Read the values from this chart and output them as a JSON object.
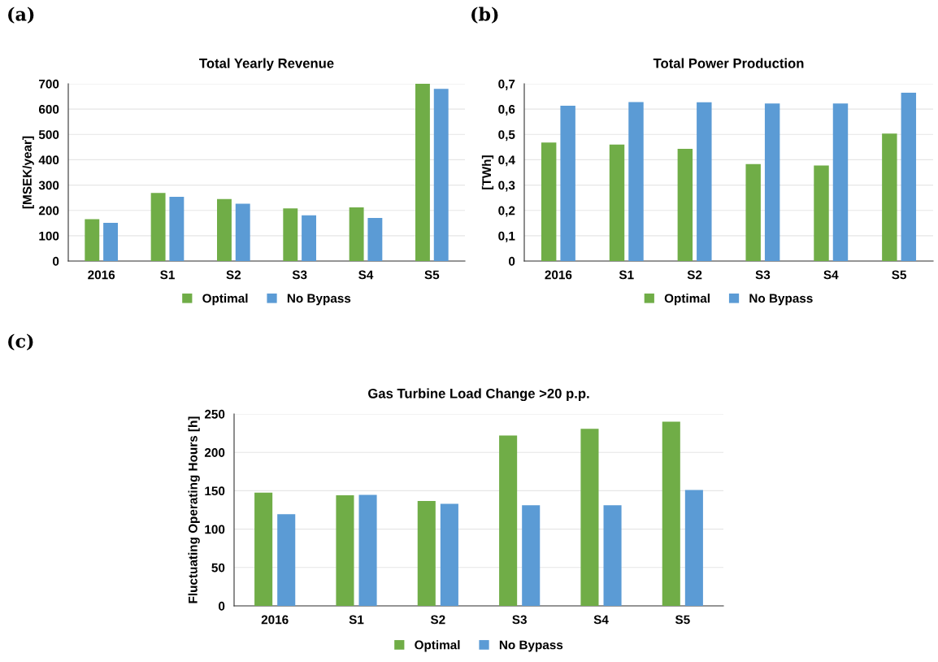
{
  "chart_data": [
    {
      "type": "bar",
      "title": "Total Yearly Revenue",
      "ylabel": "[MSEK/year]",
      "annotations": [
        "(a)"
      ],
      "categories": [
        "2016",
        "S1",
        "S2",
        "S3",
        "S4",
        "S5"
      ],
      "series": [
        {
          "name": "Optimal",
          "color": "#70ad47",
          "values": [
            165,
            269,
            245,
            208,
            212,
            700
          ]
        },
        {
          "name": "No Bypass",
          "color": "#5b9bd5",
          "values": [
            151,
            254,
            226,
            181,
            170,
            680
          ]
        }
      ],
      "ylim": [
        0,
        700
      ],
      "yticks": [
        0,
        100,
        200,
        300,
        400,
        500,
        600,
        700
      ],
      "grid": "y",
      "legend": "bottom"
    },
    {
      "type": "bar",
      "title": "Total Power Production",
      "ylabel": "[TWh]",
      "annotations": [
        "(b)"
      ],
      "categories": [
        "2016",
        "S1",
        "S2",
        "S3",
        "S4",
        "S5"
      ],
      "series": [
        {
          "name": "Optimal",
          "color": "#70ad47",
          "values": [
            0.468,
            0.46,
            0.443,
            0.383,
            0.377,
            0.503
          ]
        },
        {
          "name": "No Bypass",
          "color": "#5b9bd5",
          "values": [
            0.613,
            0.628,
            0.627,
            0.622,
            0.622,
            0.665
          ]
        }
      ],
      "ylim": [
        0,
        0.7
      ],
      "yticks": [
        0,
        {
          "value": 0.1,
          "label": "0,1"
        },
        {
          "value": 0.2,
          "label": "0,2"
        },
        {
          "value": 0.3,
          "label": "0,3"
        },
        {
          "value": 0.4,
          "label": "0,4"
        },
        {
          "value": 0.5,
          "label": "0,5"
        },
        {
          "value": 0.6,
          "label": "0,6"
        },
        {
          "value": 0.7,
          "label": "0,7"
        }
      ],
      "grid": "y",
      "legend": "bottom"
    },
    {
      "type": "bar",
      "title": "Gas Turbine Load Change >20 p.p.",
      "ylabel": "Fluctuating Operating Hours [h]",
      "annotations": [
        "(c)"
      ],
      "categories": [
        "2016",
        "S1",
        "S2",
        "S3",
        "S4",
        "S5"
      ],
      "series": [
        {
          "name": "Optimal",
          "color": "#70ad47",
          "values": [
            147.5,
            144,
            136.6,
            222,
            230.7,
            240
          ]
        },
        {
          "name": "No Bypass",
          "color": "#5b9bd5",
          "values": [
            119.5,
            144.5,
            133,
            131,
            131,
            151
          ]
        }
      ],
      "ylim": [
        0,
        250
      ],
      "yticks": [
        0,
        50,
        100,
        150,
        200,
        250
      ],
      "grid": "y",
      "legend": "bottom"
    }
  ]
}
